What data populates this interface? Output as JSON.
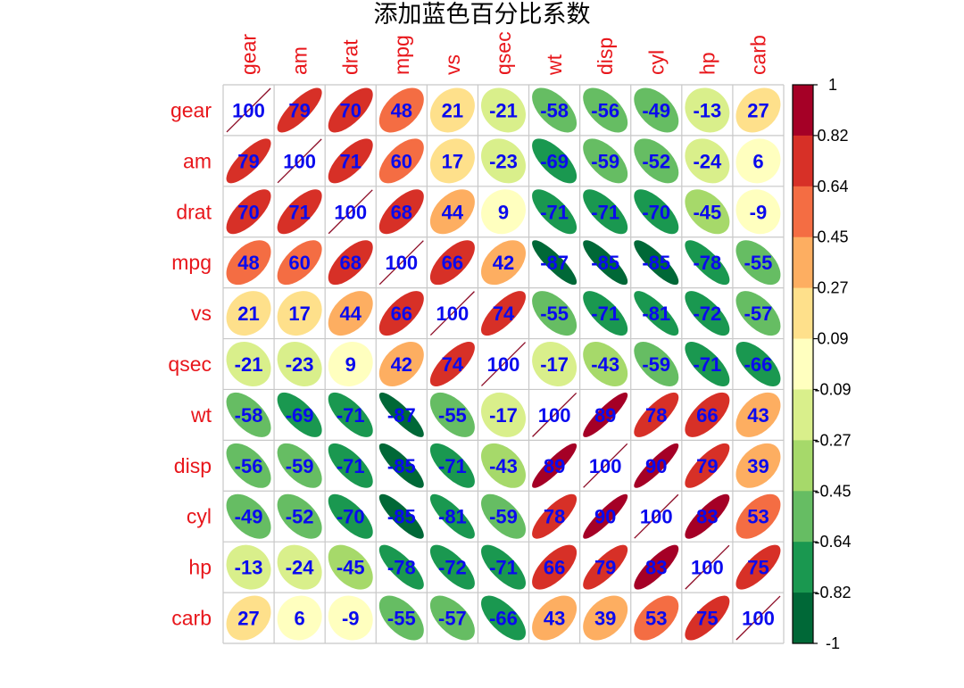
{
  "chart_data": {
    "type": "heatmap",
    "subtype": "correlation-matrix-ellipse",
    "title": "添加蓝色百分比系数",
    "variables": [
      "gear",
      "am",
      "drat",
      "mpg",
      "vs",
      "qsec",
      "wt",
      "disp",
      "cyl",
      "hp",
      "carb"
    ],
    "x_tick_labels": [
      "gear",
      "am",
      "drat",
      "mpg",
      "vs",
      "qsec",
      "wt",
      "disp",
      "cyl",
      "hp",
      "carb"
    ],
    "y_tick_labels": [
      "gear",
      "am",
      "drat",
      "mpg",
      "vs",
      "qsec",
      "wt",
      "disp",
      "cyl",
      "hp",
      "carb"
    ],
    "values_percent": [
      [
        100,
        79,
        70,
        48,
        21,
        -21,
        -58,
        -56,
        -49,
        -13,
        27
      ],
      [
        79,
        100,
        71,
        60,
        17,
        -23,
        -69,
        -59,
        -52,
        -24,
        6
      ],
      [
        70,
        71,
        100,
        68,
        44,
        9,
        -71,
        -71,
        -70,
        -45,
        -9
      ],
      [
        48,
        60,
        68,
        100,
        66,
        42,
        -87,
        -85,
        -85,
        -78,
        -55
      ],
      [
        21,
        17,
        44,
        66,
        100,
        74,
        -55,
        -71,
        -81,
        -72,
        -57
      ],
      [
        -21,
        -23,
        9,
        42,
        74,
        100,
        -17,
        -43,
        -59,
        -71,
        -66
      ],
      [
        -58,
        -69,
        -71,
        -87,
        -55,
        -17,
        100,
        89,
        78,
        66,
        43
      ],
      [
        -56,
        -59,
        -71,
        -85,
        -71,
        -43,
        89,
        100,
        90,
        79,
        39
      ],
      [
        -49,
        -52,
        -70,
        -85,
        -81,
        -59,
        78,
        90,
        100,
        83,
        53
      ],
      [
        -13,
        -24,
        -45,
        -78,
        -72,
        -71,
        66,
        79,
        83,
        100,
        75
      ],
      [
        27,
        6,
        -9,
        -55,
        -57,
        -66,
        43,
        39,
        53,
        75,
        100
      ]
    ],
    "legend": {
      "type": "colorbar",
      "position": "right",
      "range": [
        -1,
        1
      ],
      "tick_labels": [
        "1",
        "0.82",
        "0.64",
        "0.45",
        "0.27",
        "0.09",
        "-0.09",
        "-0.27",
        "-0.45",
        "-0.64",
        "-0.82",
        "-1"
      ],
      "bin_colors_top_to_bottom": [
        "#a50026",
        "#d73027",
        "#f46d43",
        "#fdae61",
        "#fee08b",
        "#ffffbf",
        "#d9ef8b",
        "#a6d96a",
        "#66bd63",
        "#1a9850",
        "#006837"
      ]
    },
    "label_color": "#e8161b",
    "number_color": "#0a0aee",
    "grid_color": "#c8c8c8",
    "diagonal_line_color": "#8b0a24",
    "grid": true
  }
}
